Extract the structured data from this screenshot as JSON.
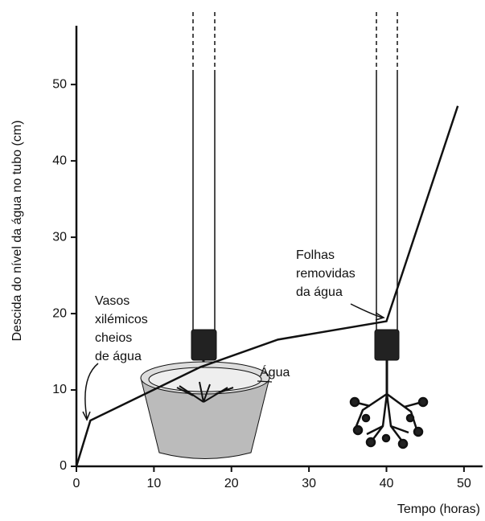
{
  "chart_data": {
    "type": "line",
    "x_label": "Tempo (horas)",
    "y_label": "Descida do nível da água no tubo (cm)",
    "x": [
      0,
      1.8,
      16,
      26,
      40,
      49.2
    ],
    "values": [
      0,
      6,
      13,
      16.6,
      19,
      47.2
    ],
    "color": "#111111",
    "xlim": [
      0,
      52.4
    ],
    "ylim": [
      0,
      57.7
    ],
    "xticks": [
      0,
      10,
      20,
      30,
      40,
      50
    ],
    "yticks": [
      0,
      10,
      20,
      30,
      40,
      50
    ],
    "annotations": {
      "xylem": [
        "Vasos",
        "xilémicos",
        "cheios",
        "de água"
      ],
      "leaves": [
        "Folhas",
        "removidas",
        "da água"
      ],
      "water": "Água"
    }
  }
}
